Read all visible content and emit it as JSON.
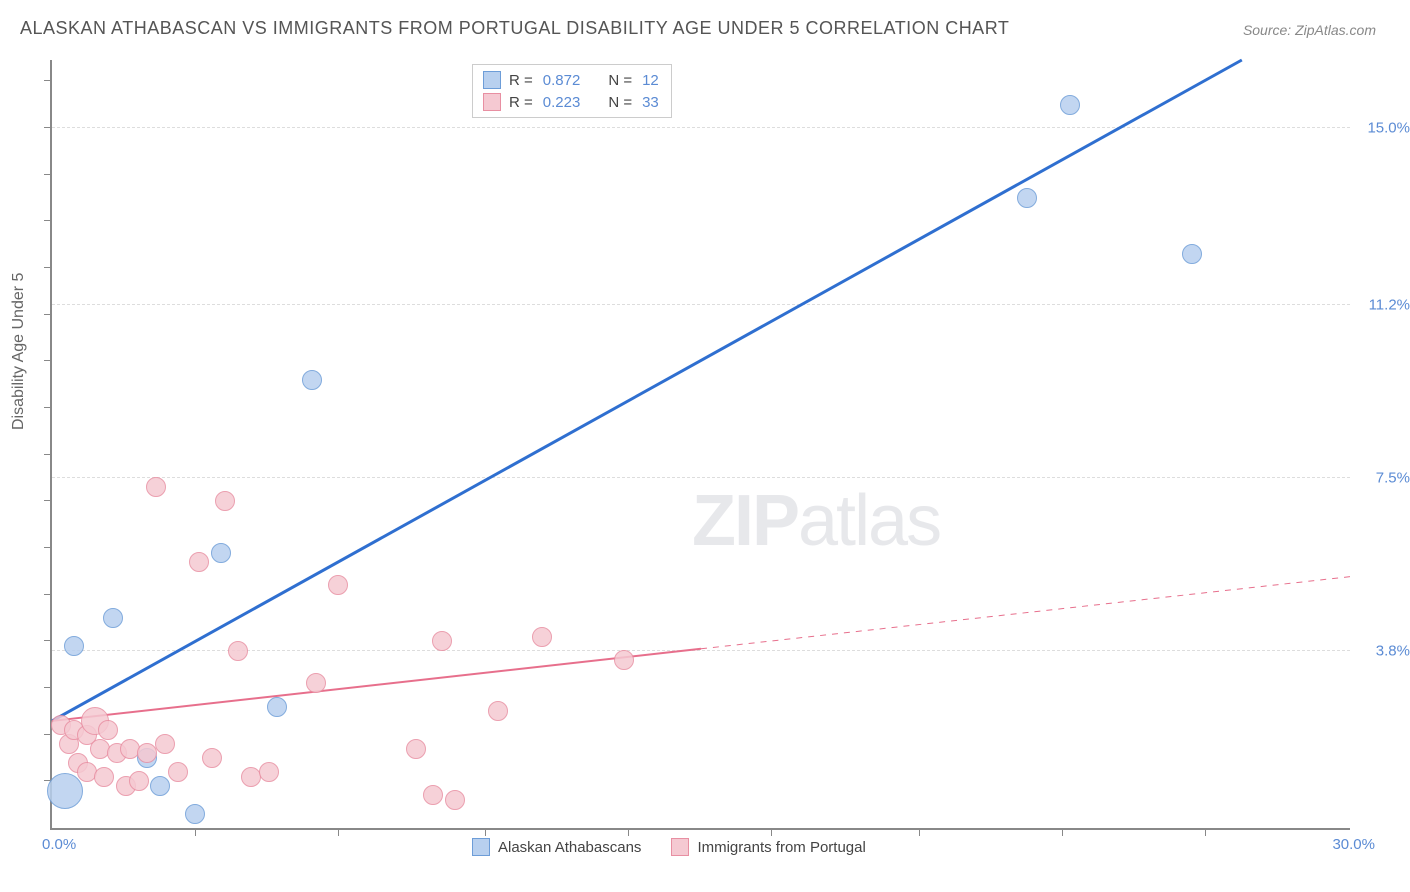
{
  "title": "ALASKAN ATHABASCAN VS IMMIGRANTS FROM PORTUGAL DISABILITY AGE UNDER 5 CORRELATION CHART",
  "source": "Source: ZipAtlas.com",
  "y_axis_label": "Disability Age Under 5",
  "watermark_bold": "ZIP",
  "watermark_rest": "atlas",
  "chart": {
    "type": "scatter-with-trend",
    "xlim": [
      0,
      30
    ],
    "ylim": [
      0,
      16.5
    ],
    "x_origin_label": "0.0%",
    "x_max_label": "30.0%",
    "y_ticks": [
      {
        "pos": 15.0,
        "label": "15.0%"
      },
      {
        "pos": 11.2,
        "label": "11.2%"
      },
      {
        "pos": 7.5,
        "label": "7.5%"
      },
      {
        "pos": 3.8,
        "label": "3.8%"
      }
    ],
    "x_tick_positions": [
      3.3,
      6.6,
      10,
      13.3,
      16.6,
      20,
      23.3,
      26.6
    ],
    "y_minor_ticks": [
      1,
      2,
      3,
      4,
      5,
      6,
      7,
      8,
      9,
      10,
      11,
      12,
      13,
      14,
      15,
      16
    ],
    "background_color": "#ffffff",
    "grid_color": "#dddddd",
    "axis_color": "#888888",
    "series": [
      {
        "name": "Alaskan Athabascans",
        "fill_color": "#b8d0ef",
        "stroke_color": "#6d9dd8",
        "trend_color": "#2f6fd0",
        "trend_width": 3,
        "trend_dash_after_x": 30,
        "r_value": "0.872",
        "n_value": "12",
        "marker_radius": 10,
        "points": [
          {
            "x": 0.3,
            "y": 0.8,
            "r": 18
          },
          {
            "x": 0.5,
            "y": 3.9
          },
          {
            "x": 1.4,
            "y": 4.5
          },
          {
            "x": 2.5,
            "y": 0.9
          },
          {
            "x": 2.2,
            "y": 1.5
          },
          {
            "x": 3.3,
            "y": 0.3
          },
          {
            "x": 3.9,
            "y": 5.9
          },
          {
            "x": 5.2,
            "y": 2.6
          },
          {
            "x": 6.0,
            "y": 9.6
          },
          {
            "x": 22.5,
            "y": 13.5
          },
          {
            "x": 23.5,
            "y": 15.5
          },
          {
            "x": 26.3,
            "y": 12.3
          }
        ],
        "trend_start": {
          "x": 0,
          "y": 2.3
        },
        "trend_end": {
          "x": 27.5,
          "y": 16.5
        }
      },
      {
        "name": "Immigrants from Portugal",
        "fill_color": "#f5c9d2",
        "stroke_color": "#e88fa2",
        "trend_color": "#e76f8c",
        "trend_width": 2,
        "trend_dash_after_x": 15,
        "r_value": "0.223",
        "n_value": "33",
        "marker_radius": 10,
        "points": [
          {
            "x": 0.2,
            "y": 2.2
          },
          {
            "x": 0.4,
            "y": 1.8
          },
          {
            "x": 0.5,
            "y": 2.1
          },
          {
            "x": 0.6,
            "y": 1.4
          },
          {
            "x": 0.8,
            "y": 2.0
          },
          {
            "x": 0.8,
            "y": 1.2
          },
          {
            "x": 1.0,
            "y": 2.3,
            "r": 14
          },
          {
            "x": 1.1,
            "y": 1.7
          },
          {
            "x": 1.2,
            "y": 1.1
          },
          {
            "x": 1.3,
            "y": 2.1
          },
          {
            "x": 1.5,
            "y": 1.6
          },
          {
            "x": 1.7,
            "y": 0.9
          },
          {
            "x": 1.8,
            "y": 1.7
          },
          {
            "x": 2.0,
            "y": 1.0
          },
          {
            "x": 2.2,
            "y": 1.6
          },
          {
            "x": 2.4,
            "y": 7.3
          },
          {
            "x": 2.6,
            "y": 1.8
          },
          {
            "x": 2.9,
            "y": 1.2
          },
          {
            "x": 3.4,
            "y": 5.7
          },
          {
            "x": 3.7,
            "y": 1.5
          },
          {
            "x": 4.0,
            "y": 7.0
          },
          {
            "x": 4.3,
            "y": 3.8
          },
          {
            "x": 4.6,
            "y": 1.1
          },
          {
            "x": 5.0,
            "y": 1.2
          },
          {
            "x": 6.1,
            "y": 3.1
          },
          {
            "x": 6.6,
            "y": 5.2
          },
          {
            "x": 8.4,
            "y": 1.7
          },
          {
            "x": 8.8,
            "y": 0.7
          },
          {
            "x": 9.0,
            "y": 4.0
          },
          {
            "x": 9.3,
            "y": 0.6
          },
          {
            "x": 10.3,
            "y": 2.5
          },
          {
            "x": 11.3,
            "y": 4.1
          },
          {
            "x": 13.2,
            "y": 3.6
          }
        ],
        "trend_start": {
          "x": 0,
          "y": 2.3
        },
        "trend_end": {
          "x": 30,
          "y": 5.4
        }
      }
    ]
  },
  "legend_top": {
    "rows": [
      {
        "swatch_fill": "#b8d0ef",
        "swatch_stroke": "#6d9dd8",
        "r_label": "R =",
        "r_val": "0.872",
        "n_label": "N =",
        "n_val": "12"
      },
      {
        "swatch_fill": "#f5c9d2",
        "swatch_stroke": "#e88fa2",
        "r_label": "R =",
        "r_val": "0.223",
        "n_label": "N =",
        "n_val": "33"
      }
    ]
  },
  "legend_bottom": {
    "items": [
      {
        "swatch_fill": "#b8d0ef",
        "swatch_stroke": "#6d9dd8",
        "label": "Alaskan Athabascans"
      },
      {
        "swatch_fill": "#f5c9d2",
        "swatch_stroke": "#e88fa2",
        "label": "Immigrants from Portugal"
      }
    ]
  }
}
